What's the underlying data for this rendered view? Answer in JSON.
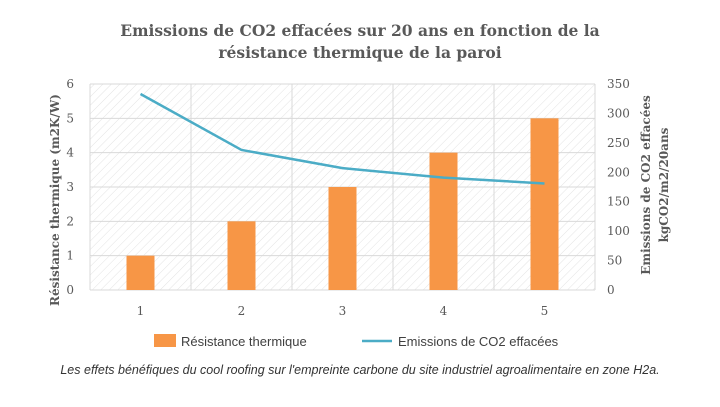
{
  "chart_data": {
    "type": "bar+line",
    "title": [
      "Emissions de CO2 effacées sur 20 ans en fonction de la",
      "résistance thermique de la paroi"
    ],
    "categories": [
      "1",
      "2",
      "3",
      "4",
      "5"
    ],
    "y_left": {
      "label": "Résistance thermique (m2K/W)",
      "range": [
        0,
        6
      ],
      "ticks": [
        "0",
        "1",
        "2",
        "3",
        "4",
        "5",
        "6"
      ]
    },
    "y_right": {
      "label": [
        "Emissions de CO2 effacées",
        "kgCO2/m2/20ans"
      ],
      "range": [
        0,
        350
      ],
      "ticks": [
        "0",
        "50",
        "100",
        "150",
        "200",
        "250",
        "300",
        "350"
      ]
    },
    "series": [
      {
        "name": "Résistance thermique",
        "kind": "bar",
        "axis": "left",
        "color": "#f79646",
        "values": [
          1,
          2,
          3,
          4,
          5
        ]
      },
      {
        "name": "Emissions de CO2 effacées",
        "kind": "line",
        "axis": "right",
        "color": "#4bacc6",
        "values": [
          333,
          238,
          207,
          191,
          181
        ]
      }
    ],
    "grid": true,
    "legend": "bottom"
  },
  "caption": "Les effets bénéfiques du cool roofing sur l'empreinte carbone du site industriel agroalimentaire en zone H2a."
}
